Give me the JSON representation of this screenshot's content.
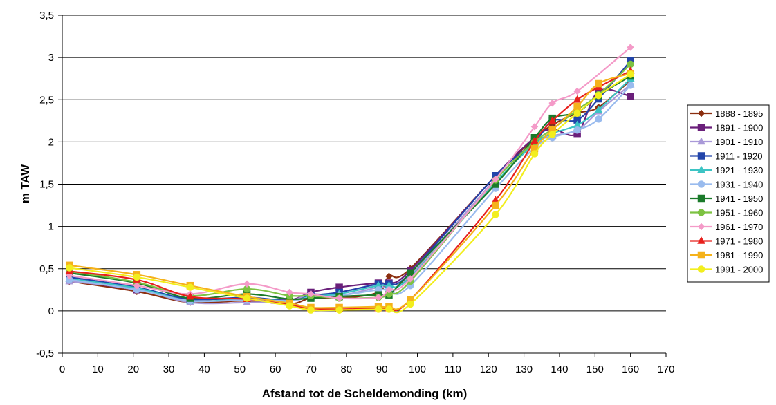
{
  "chart_data": {
    "type": "line",
    "title": "",
    "xlabel": "Afstand tot de Scheldemonding (km)",
    "ylabel": "m TAW",
    "xlim": [
      0,
      170
    ],
    "ylim": [
      -0.5,
      3.5
    ],
    "x_ticks": [
      "0",
      "10",
      "20",
      "30",
      "40",
      "50",
      "60",
      "70",
      "80",
      "90",
      "100",
      "110",
      "120",
      "130",
      "140",
      "150",
      "160",
      "170"
    ],
    "y_ticks": [
      "-0,5",
      "0",
      "0,5",
      "1",
      "1,5",
      "2",
      "2,5",
      "3",
      "3,5"
    ],
    "grid": "horizontal",
    "legend": "right",
    "smooth": true,
    "series": [
      {
        "name": "1888 - 1895",
        "color": "#8B2E0F",
        "marker": "diamond",
        "x": [
          2,
          21,
          36,
          52,
          64,
          70,
          78,
          89,
          92,
          98,
          122,
          133,
          138,
          145,
          151,
          160
        ],
        "y": [
          0.35,
          0.23,
          0.1,
          0.12,
          0.08,
          0.15,
          0.15,
          0.22,
          0.41,
          0.5,
          1.6,
          2.04,
          2.2,
          2.34,
          2.41,
          2.73
        ]
      },
      {
        "name": "1891 - 1900",
        "color": "#6A1F7A",
        "marker": "square",
        "x": [
          2,
          21,
          36,
          52,
          64,
          70,
          78,
          89,
          92,
          98,
          122,
          133,
          138,
          145,
          151,
          160
        ],
        "y": [
          0.36,
          0.25,
          0.14,
          0.15,
          0.13,
          0.22,
          0.28,
          0.33,
          0.33,
          0.48,
          1.6,
          2.05,
          2.15,
          2.1,
          2.6,
          2.54
        ]
      },
      {
        "name": "1901 - 1910",
        "color": "#A999D8",
        "marker": "triangle",
        "x": [
          2,
          21,
          36,
          52,
          64,
          70,
          78,
          89,
          92,
          98,
          122,
          133,
          138,
          145,
          151,
          160
        ],
        "y": [
          0.35,
          0.26,
          0.1,
          0.1,
          0.12,
          0.2,
          0.18,
          0.28,
          0.28,
          0.42,
          1.56,
          1.98,
          2.07,
          2.14,
          2.36,
          2.68
        ]
      },
      {
        "name": "1911 - 1920",
        "color": "#2244AA",
        "marker": "square",
        "x": [
          2,
          21,
          36,
          52,
          64,
          70,
          78,
          89,
          92,
          98,
          122,
          133,
          138,
          145,
          151,
          160
        ],
        "y": [
          0.4,
          0.28,
          0.14,
          0.16,
          0.12,
          0.18,
          0.22,
          0.32,
          0.32,
          0.45,
          1.6,
          2.0,
          2.25,
          2.26,
          2.51,
          2.96
        ]
      },
      {
        "name": "1921 - 1930",
        "color": "#3CC4C4",
        "marker": "triangle",
        "x": [
          2,
          21,
          36,
          52,
          64,
          70,
          78,
          89,
          92,
          98,
          122,
          133,
          138,
          145,
          151,
          160
        ],
        "y": [
          0.38,
          0.27,
          0.12,
          0.14,
          0.12,
          0.17,
          0.2,
          0.3,
          0.3,
          0.4,
          1.52,
          1.98,
          2.1,
          2.2,
          2.38,
          2.75
        ]
      },
      {
        "name": "1931 - 1940",
        "color": "#99BBEE",
        "marker": "circle",
        "x": [
          2,
          21,
          36,
          52,
          64,
          70,
          78,
          89,
          92,
          98,
          122,
          133,
          138,
          145,
          151,
          160
        ],
        "y": [
          0.37,
          0.25,
          0.12,
          0.13,
          0.12,
          0.16,
          0.18,
          0.25,
          0.25,
          0.3,
          1.45,
          1.93,
          2.05,
          2.14,
          2.27,
          2.67
        ]
      },
      {
        "name": "1941 - 1950",
        "color": "#1A7A2A",
        "marker": "square",
        "x": [
          2,
          21,
          36,
          52,
          64,
          70,
          78,
          89,
          92,
          98,
          122,
          133,
          138,
          145,
          151,
          160
        ],
        "y": [
          0.45,
          0.33,
          0.15,
          0.2,
          0.14,
          0.15,
          0.17,
          0.19,
          0.19,
          0.45,
          1.5,
          2.05,
          2.28,
          2.35,
          2.55,
          2.78
        ]
      },
      {
        "name": "1951 - 1960",
        "color": "#7DC242",
        "marker": "circle",
        "x": [
          2,
          21,
          36,
          52,
          64,
          70,
          78,
          89,
          92,
          98,
          122,
          133,
          138,
          145,
          151,
          160
        ],
        "y": [
          0.47,
          0.34,
          0.18,
          0.26,
          0.18,
          0.18,
          0.15,
          0.16,
          0.2,
          0.35,
          1.55,
          2.0,
          2.15,
          2.38,
          2.56,
          2.92
        ]
      },
      {
        "name": "1961 - 1970",
        "color": "#F49AC8",
        "marker": "diamond",
        "x": [
          2,
          21,
          36,
          52,
          64,
          70,
          78,
          89,
          92,
          98,
          122,
          133,
          138,
          145,
          160
        ],
        "y": [
          0.42,
          0.3,
          0.2,
          0.32,
          0.22,
          0.2,
          0.15,
          0.16,
          0.25,
          0.38,
          1.56,
          2.18,
          2.46,
          2.6,
          3.12
        ]
      },
      {
        "name": "1971 - 1980",
        "color": "#E8201C",
        "marker": "triangle",
        "x": [
          2,
          21,
          36,
          52,
          64,
          70,
          78,
          89,
          92,
          98,
          122,
          133,
          138,
          145,
          151,
          160
        ],
        "y": [
          0.47,
          0.37,
          0.17,
          0.14,
          0.07,
          0.03,
          0.02,
          0.03,
          0.03,
          0.13,
          1.31,
          2.01,
          2.25,
          2.5,
          2.65,
          2.84
        ]
      },
      {
        "name": "1981 - 1990",
        "color": "#F5B21A",
        "marker": "square",
        "x": [
          2,
          21,
          36,
          52,
          64,
          70,
          78,
          89,
          92,
          98,
          122,
          133,
          138,
          145,
          151,
          160
        ],
        "y": [
          0.54,
          0.43,
          0.3,
          0.17,
          0.09,
          0.04,
          0.04,
          0.05,
          0.05,
          0.13,
          1.25,
          1.92,
          2.14,
          2.42,
          2.69,
          2.81
        ]
      },
      {
        "name": "1991 - 2000",
        "color": "#F2EE1E",
        "marker": "circle",
        "x": [
          2,
          21,
          36,
          52,
          64,
          70,
          78,
          89,
          92,
          98,
          122,
          133,
          138,
          145,
          151,
          160
        ],
        "y": [
          0.51,
          0.4,
          0.28,
          0.15,
          0.06,
          0.01,
          0.01,
          0.02,
          0.02,
          0.08,
          1.14,
          1.86,
          2.09,
          2.34,
          2.55,
          2.8
        ]
      }
    ]
  }
}
